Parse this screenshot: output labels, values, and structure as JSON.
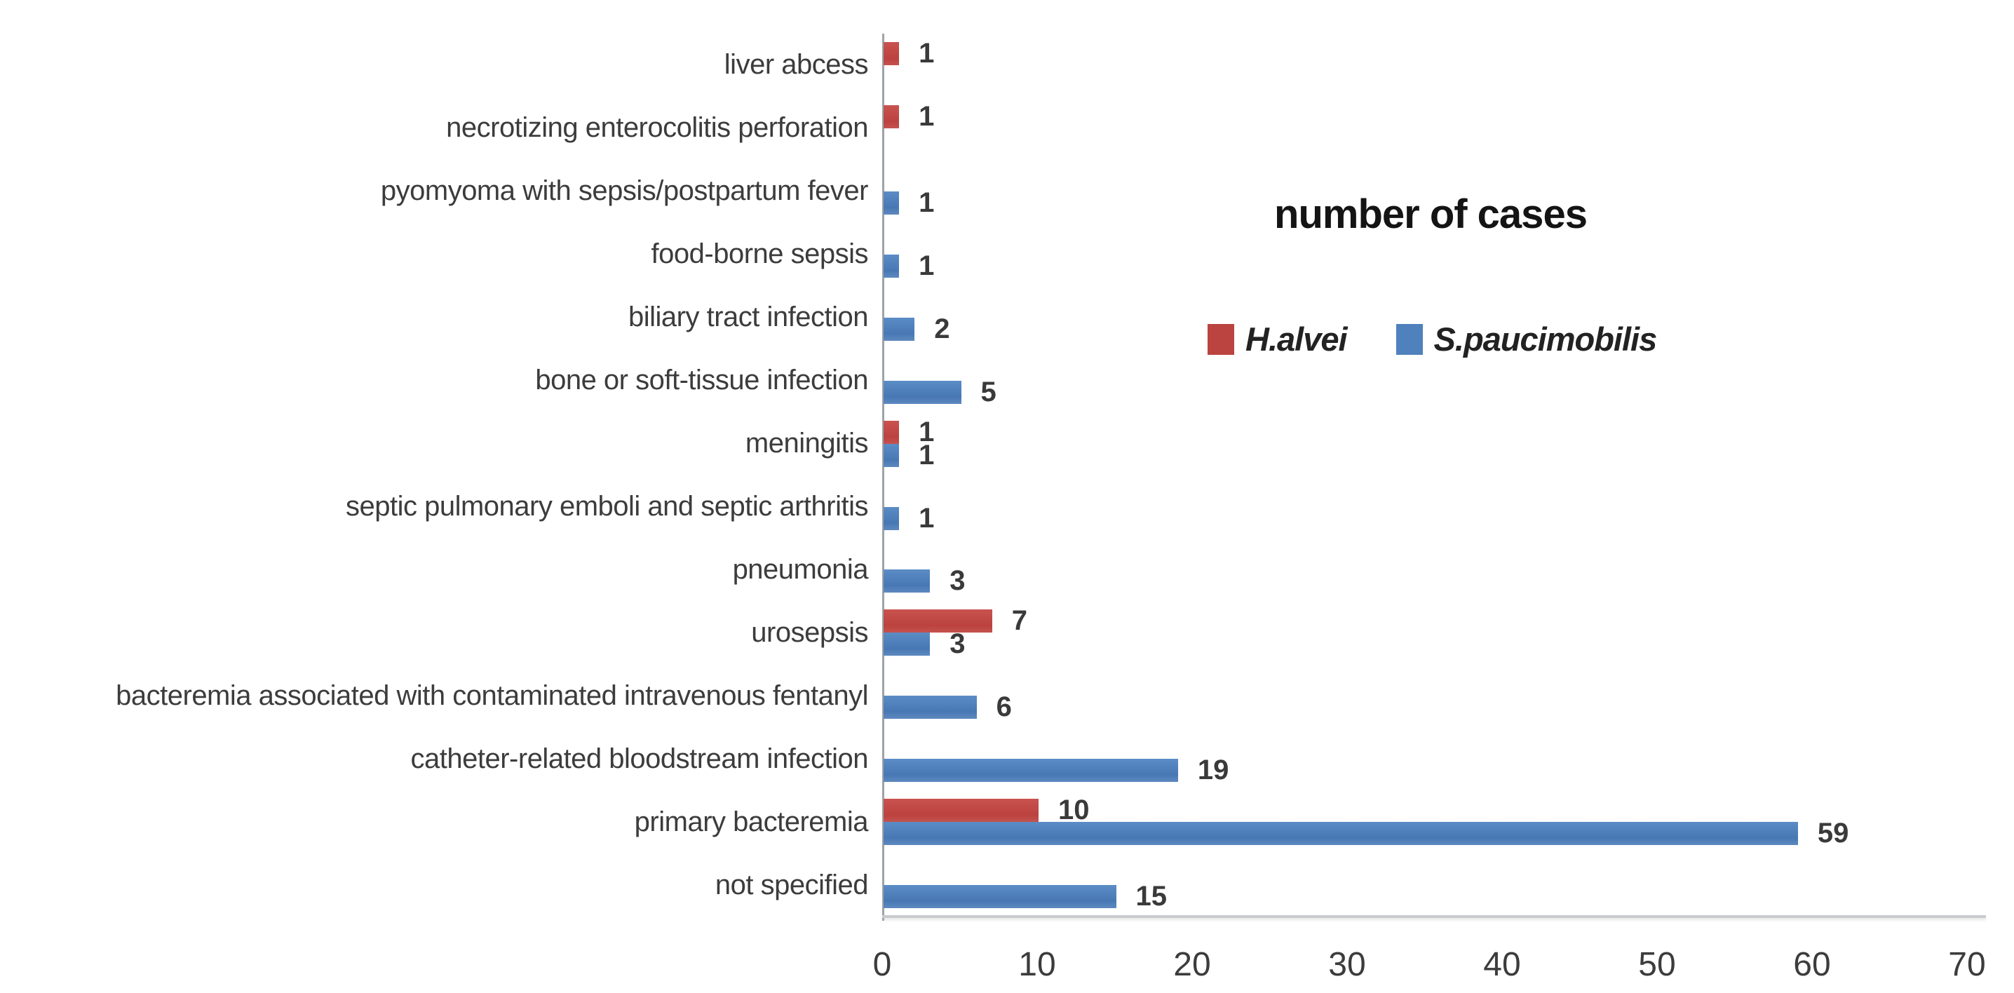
{
  "title": "number of cases",
  "legend": {
    "items": [
      {
        "label": "H.alvei",
        "color": "#bb4340"
      },
      {
        "label": "S.paucimobilis",
        "color": "#4f81bd"
      }
    ]
  },
  "chart_data": {
    "type": "bar",
    "orientation": "horizontal",
    "title": "number of cases",
    "categories": [
      "liver abcess",
      "necrotizing enterocolitis perforation",
      "pyomyoma with sepsis/postpartum fever",
      "food-borne sepsis",
      "biliary tract infection",
      "bone or soft-tissue infection",
      "meningitis",
      "septic pulmonary emboli and septic arthritis",
      "pneumonia",
      "urosepsis",
      "bacteremia associated with contaminated intravenous fentanyl",
      "catheter-related bloodstream infection",
      "primary bacteremia",
      "not specified"
    ],
    "series": [
      {
        "name": "H.alvei",
        "color": "#bb4340",
        "values": [
          1,
          1,
          0,
          0,
          0,
          0,
          1,
          0,
          0,
          7,
          0,
          0,
          10,
          0
        ]
      },
      {
        "name": "S.paucimobilis",
        "color": "#4f81bd",
        "values": [
          0,
          0,
          1,
          1,
          2,
          5,
          1,
          1,
          3,
          3,
          6,
          19,
          59,
          15
        ]
      }
    ],
    "xlim": [
      0,
      70
    ],
    "xticks": [
      0,
      10,
      20,
      30,
      40,
      50,
      60,
      70
    ],
    "grid": false,
    "data_labels": true,
    "legend_position": "right-upper",
    "axis_color": "#9fa3a7"
  }
}
